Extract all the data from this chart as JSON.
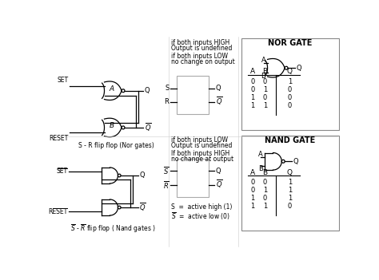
{
  "bg_color": "#ffffff",
  "line_color": "#000000",
  "title_nor": "NOR GATE",
  "title_nand": "NAND GATE",
  "nor_truth": [
    [
      "0",
      "0",
      "1"
    ],
    [
      "0",
      "1",
      "0"
    ],
    [
      "1",
      "0",
      "0"
    ],
    [
      "1",
      "1",
      "0"
    ]
  ],
  "nand_truth": [
    [
      "0",
      "0",
      "1"
    ],
    [
      "0",
      "1",
      "1"
    ],
    [
      "1",
      "0",
      "1"
    ],
    [
      "1",
      "1",
      "0"
    ]
  ],
  "nor_note1": "if both inputs HIGH",
  "nor_note2": "Output is undefined",
  "nor_note3": "if both inputs LOW",
  "nor_note4": "no change on output",
  "nand_note1": "if both inputs LOW",
  "nand_note2": "Output is undefined",
  "nand_note3": "If both inputs HIGH",
  "nand_note4": "no change at output",
  "legend1": "S  =  active high (1)",
  "label_nor": "S - R flip flop (Nor gates)",
  "label_nand": "S - R flip flop ( Nand gates )"
}
